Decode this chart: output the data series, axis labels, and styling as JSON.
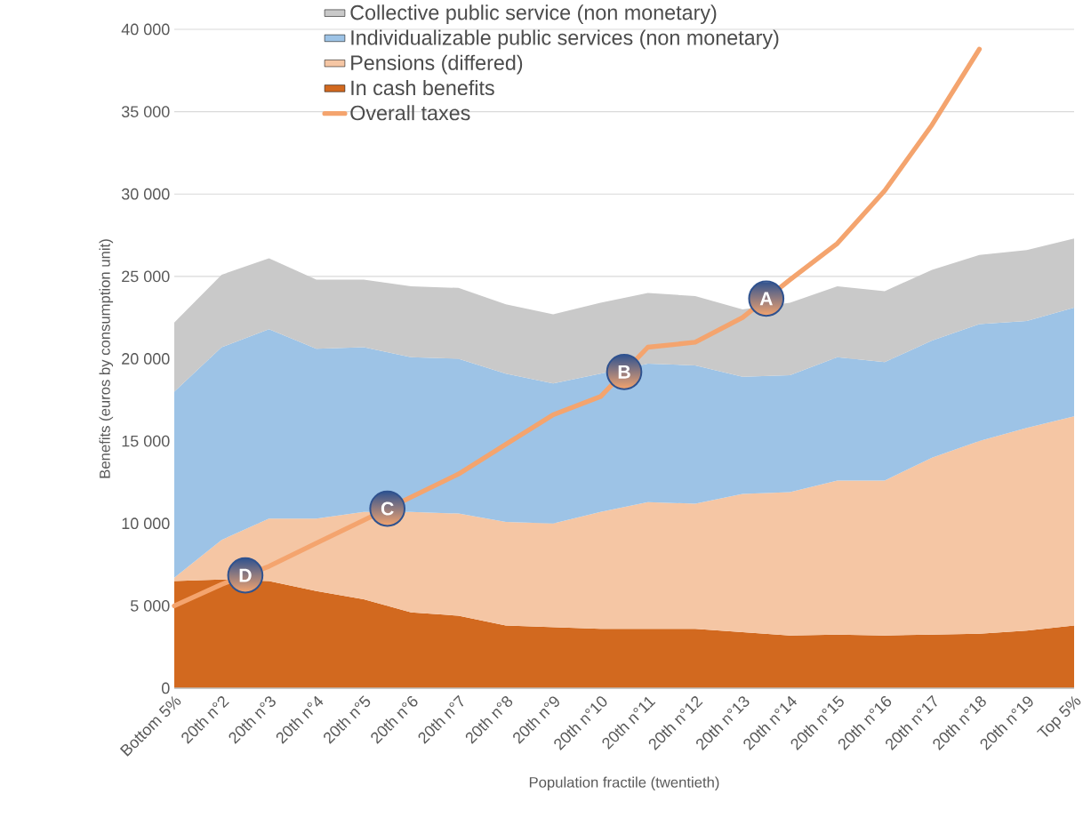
{
  "chart_data": {
    "type": "area",
    "stacked": true,
    "xlabel": "Population fractile (twentieth)",
    "ylabel": "Benefits (euros by consumption unit)",
    "categories": [
      "Bottom  5%",
      "20th n°2",
      "20th n°3",
      "20th n°4",
      "20th n°5",
      "20th n°6",
      "20th n°7",
      "20th n°8",
      "20th n°9",
      "20th n°10",
      "20th n°11",
      "20th n°12",
      "20th n°13",
      "20th n°14",
      "20th n°15",
      "20th n°16",
      "20th n°17",
      "20th n°18",
      "20th n°19",
      "Top  5%"
    ],
    "series": [
      {
        "name": "In cash benefits",
        "color": "#d2691f",
        "values": [
          6500,
          6600,
          6500,
          5900,
          5400,
          4600,
          4400,
          3800,
          3700,
          3600,
          3600,
          3600,
          3400,
          3200,
          3250,
          3200,
          3250,
          3300,
          3500,
          3800
        ]
      },
      {
        "name": "Pensions (differed)",
        "color": "#f5c6a4",
        "values": [
          200,
          2400,
          3800,
          4400,
          5300,
          6100,
          6200,
          6300,
          6300,
          7100,
          7700,
          7600,
          8400,
          8700,
          9350,
          9400,
          10750,
          11700,
          12300,
          12700
        ]
      },
      {
        "name": "Individualizable public services (non monetary)",
        "color": "#9dc3e6",
        "values": [
          11300,
          11700,
          11500,
          10300,
          10000,
          9400,
          9400,
          9000,
          8500,
          8400,
          8400,
          8400,
          7100,
          7100,
          7500,
          7200,
          7100,
          7100,
          6500,
          6600
        ]
      },
      {
        "name": "Collective public service (non monetary)",
        "color": "#c9c9c9",
        "values": [
          4200,
          4400,
          4300,
          4200,
          4100,
          4300,
          4300,
          4200,
          4200,
          4300,
          4300,
          4200,
          4100,
          4400,
          4300,
          4300,
          4300,
          4200,
          4300,
          4200
        ]
      },
      {
        "name": "Overall taxes",
        "type": "line",
        "color": "#f4a46e",
        "values": [
          5000,
          6300,
          7400,
          8800,
          10200,
          11600,
          13000,
          14800,
          16600,
          17700,
          20700,
          21000,
          22500,
          24800,
          27000,
          30200,
          34200,
          38800,
          null,
          null
        ]
      }
    ],
    "ylim": [
      0,
      40000
    ],
    "yticks": [
      0,
      {
        "value": 5000,
        "label": "5 000"
      },
      {
        "value": 10000,
        "label": "10 000"
      },
      {
        "value": 15000,
        "label": "15 000"
      },
      {
        "value": 20000,
        "label": "20 000"
      },
      {
        "value": 25000,
        "label": "25 000"
      },
      {
        "value": 30000,
        "label": "30 000"
      },
      {
        "value": 35000,
        "label": "35 000"
      },
      {
        "value": 40000,
        "label": "40 000"
      }
    ],
    "grid": "y",
    "legend": "top",
    "annotations": [
      "A",
      "B",
      "C",
      "D"
    ]
  }
}
